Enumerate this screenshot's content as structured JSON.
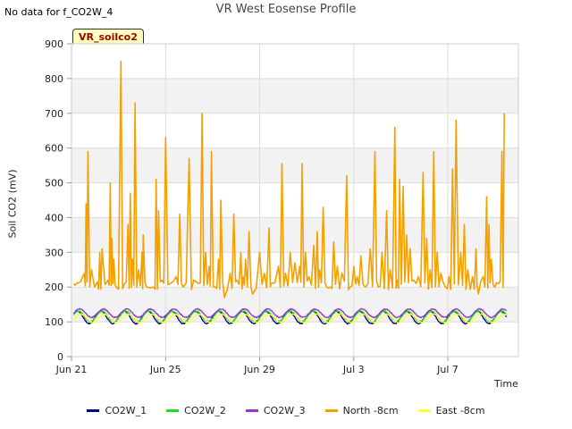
{
  "header": {
    "no_data_text": "No data for f_CO2W_4",
    "badge": "VR_soilco2"
  },
  "chart_data": {
    "type": "line",
    "title": "VR West Eosense Profile",
    "xlabel": "Time",
    "ylabel": "Soil CO2 (mV)",
    "ylim": [
      0,
      900
    ],
    "yticks": [
      0,
      100,
      200,
      300,
      400,
      500,
      600,
      700,
      800,
      900
    ],
    "xlim": [
      "2024-06-21",
      "2024-07-10"
    ],
    "xticks": [
      {
        "label": "Jun 21",
        "day": 0
      },
      {
        "label": "Jun 25",
        "day": 4
      },
      {
        "label": "Jun 29",
        "day": 8
      },
      {
        "label": "Jul 3",
        "day": 12
      },
      {
        "label": "Jul 7",
        "day": 16
      }
    ],
    "grid": true,
    "background_bands": true,
    "legend_position": "bottom",
    "series": [
      {
        "name": "CO2W_1",
        "color": "#00008b",
        "kind": "diurnal",
        "base": 113,
        "amp": 18,
        "phase": 0.0
      },
      {
        "name": "CO2W_2",
        "color": "#22dd22",
        "kind": "diurnal",
        "base": 116,
        "amp": 15,
        "phase": 0.05
      },
      {
        "name": "CO2W_3",
        "color": "#9933cc",
        "kind": "diurnal",
        "base": 125,
        "amp": 12,
        "phase": 0.1
      },
      {
        "name": "North -8cm",
        "color": "#f5a000",
        "kind": "spiky",
        "base": 200,
        "peaks": [
          [
            0.2,
            210
          ],
          [
            0.55,
            240
          ],
          [
            0.62,
            440
          ],
          [
            0.7,
            590
          ],
          [
            0.85,
            250
          ],
          [
            1.1,
            215
          ],
          [
            1.2,
            300
          ],
          [
            1.3,
            310
          ],
          [
            1.55,
            220
          ],
          [
            1.65,
            500
          ],
          [
            1.72,
            340
          ],
          [
            1.8,
            280
          ],
          [
            1.9,
            200
          ],
          [
            2.1,
            850
          ],
          [
            2.25,
            210
          ],
          [
            2.4,
            380
          ],
          [
            2.5,
            470
          ],
          [
            2.6,
            280
          ],
          [
            2.7,
            730
          ],
          [
            2.85,
            250
          ],
          [
            3.0,
            300
          ],
          [
            3.05,
            350
          ],
          [
            3.2,
            200
          ],
          [
            3.5,
            200
          ],
          [
            3.6,
            510
          ],
          [
            3.7,
            420
          ],
          [
            3.85,
            220
          ],
          [
            4.0,
            630
          ],
          [
            4.2,
            210
          ],
          [
            4.45,
            230
          ],
          [
            4.6,
            410
          ],
          [
            4.75,
            200
          ],
          [
            5.0,
            570
          ],
          [
            5.2,
            220
          ],
          [
            5.4,
            210
          ],
          [
            5.55,
            700
          ],
          [
            5.7,
            300
          ],
          [
            5.85,
            260
          ],
          [
            5.95,
            590
          ],
          [
            6.1,
            200
          ],
          [
            6.25,
            280
          ],
          [
            6.35,
            450
          ],
          [
            6.5,
            170
          ],
          [
            6.75,
            240
          ],
          [
            6.9,
            410
          ],
          [
            7.05,
            220
          ],
          [
            7.2,
            300
          ],
          [
            7.3,
            230
          ],
          [
            7.4,
            280
          ],
          [
            7.55,
            360
          ],
          [
            7.7,
            180
          ],
          [
            8.0,
            300
          ],
          [
            8.2,
            240
          ],
          [
            8.4,
            370
          ],
          [
            8.5,
            210
          ],
          [
            8.8,
            260
          ],
          [
            8.95,
            555
          ],
          [
            9.1,
            240
          ],
          [
            9.3,
            300
          ],
          [
            9.5,
            270
          ],
          [
            9.7,
            260
          ],
          [
            9.8,
            555
          ],
          [
            9.95,
            300
          ],
          [
            10.1,
            230
          ],
          [
            10.3,
            320
          ],
          [
            10.45,
            360
          ],
          [
            10.55,
            250
          ],
          [
            10.7,
            430
          ],
          [
            10.85,
            200
          ],
          [
            11.0,
            200
          ],
          [
            11.15,
            330
          ],
          [
            11.3,
            260
          ],
          [
            11.5,
            240
          ],
          [
            11.7,
            520
          ],
          [
            11.85,
            200
          ],
          [
            12.0,
            260
          ],
          [
            12.15,
            230
          ],
          [
            12.3,
            290
          ],
          [
            12.5,
            200
          ],
          [
            12.7,
            310
          ],
          [
            12.9,
            590
          ],
          [
            13.05,
            200
          ],
          [
            13.2,
            300
          ],
          [
            13.4,
            420
          ],
          [
            13.55,
            250
          ],
          [
            13.75,
            660
          ],
          [
            13.85,
            220
          ],
          [
            13.95,
            510
          ],
          [
            14.1,
            490
          ],
          [
            14.25,
            350
          ],
          [
            14.4,
            310
          ],
          [
            14.55,
            220
          ],
          [
            14.75,
            230
          ],
          [
            14.95,
            530
          ],
          [
            15.1,
            340
          ],
          [
            15.25,
            250
          ],
          [
            15.4,
            590
          ],
          [
            15.55,
            300
          ],
          [
            15.7,
            240
          ],
          [
            15.9,
            200
          ],
          [
            16.05,
            230
          ],
          [
            16.2,
            540
          ],
          [
            16.35,
            680
          ],
          [
            16.55,
            300
          ],
          [
            16.7,
            380
          ],
          [
            16.85,
            250
          ],
          [
            17.05,
            230
          ],
          [
            17.2,
            310
          ],
          [
            17.3,
            180
          ],
          [
            17.5,
            230
          ],
          [
            17.65,
            460
          ],
          [
            17.75,
            380
          ],
          [
            17.85,
            280
          ],
          [
            18.0,
            200
          ],
          [
            18.15,
            210
          ],
          [
            18.3,
            590
          ],
          [
            18.4,
            700
          ]
        ]
      },
      {
        "name": "East -8cm",
        "color": "#ffff33",
        "kind": "diurnal",
        "base": 110,
        "amp": 12,
        "phase": 0.15
      }
    ]
  }
}
